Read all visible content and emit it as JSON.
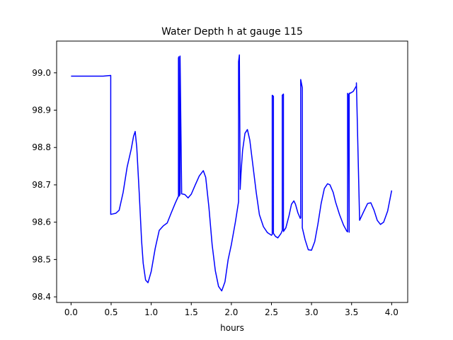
{
  "chart_data": {
    "type": "line",
    "title": "Water Depth h at gauge 115",
    "xlabel": "hours",
    "ylabel": "",
    "xlim": [
      -0.18,
      4.2
    ],
    "ylim": [
      98.385,
      99.085
    ],
    "xticks": [
      0.0,
      0.5,
      1.0,
      1.5,
      2.0,
      2.5,
      3.0,
      3.5,
      4.0
    ],
    "xtick_labels": [
      "0.0",
      "0.5",
      "1.0",
      "1.5",
      "2.0",
      "2.5",
      "3.0",
      "3.5",
      "4.0"
    ],
    "yticks": [
      98.4,
      98.5,
      98.6,
      98.7,
      98.8,
      98.9,
      99.0
    ],
    "ytick_labels": [
      "98.4",
      "98.5",
      "98.6",
      "98.7",
      "98.8",
      "98.9",
      "99.0"
    ],
    "grid": false,
    "color": "#0000ff",
    "series": [
      {
        "x": [
          0.0,
          0.2,
          0.4,
          0.495,
          0.495,
          0.52,
          0.56,
          0.6,
          0.65,
          0.7,
          0.75,
          0.78,
          0.8,
          0.82,
          0.85,
          0.88,
          0.9,
          0.93,
          0.96,
          1.0,
          1.05,
          1.1,
          1.15,
          1.2,
          1.25,
          1.3,
          1.34,
          1.34,
          1.345,
          1.35,
          1.36,
          1.36,
          1.38,
          1.42,
          1.46,
          1.5,
          1.55,
          1.6,
          1.65,
          1.68,
          1.72,
          1.76,
          1.8,
          1.84,
          1.88,
          1.92,
          1.96,
          2.0,
          2.05,
          2.09,
          2.09,
          2.1,
          2.11,
          2.11,
          2.12,
          2.14,
          2.17,
          2.2,
          2.23,
          2.27,
          2.31,
          2.35,
          2.4,
          2.45,
          2.5,
          2.51,
          2.51,
          2.525,
          2.525,
          2.55,
          2.58,
          2.62,
          2.635,
          2.635,
          2.65,
          2.65,
          2.68,
          2.72,
          2.75,
          2.78,
          2.8,
          2.83,
          2.86,
          2.865,
          2.865,
          2.885,
          2.885,
          2.92,
          2.96,
          3.0,
          3.04,
          3.08,
          3.12,
          3.16,
          3.2,
          3.23,
          3.27,
          3.3,
          3.35,
          3.4,
          3.44,
          3.45,
          3.45,
          3.46,
          3.47,
          3.47,
          3.48,
          3.48,
          3.52,
          3.56,
          3.56,
          3.6,
          3.65,
          3.7,
          3.74,
          3.78,
          3.82,
          3.86,
          3.9,
          3.95,
          4.0
        ],
        "y": [
          98.991,
          98.991,
          98.991,
          98.993,
          98.621,
          98.622,
          98.624,
          98.632,
          98.68,
          98.748,
          98.795,
          98.83,
          98.843,
          98.8,
          98.68,
          98.55,
          98.49,
          98.445,
          98.438,
          98.468,
          98.53,
          98.578,
          98.59,
          98.598,
          98.625,
          98.651,
          98.67,
          99.04,
          99.043,
          98.67,
          98.675,
          99.045,
          98.676,
          98.674,
          98.665,
          98.675,
          98.7,
          98.724,
          98.738,
          98.72,
          98.64,
          98.54,
          98.47,
          98.428,
          98.416,
          98.44,
          98.5,
          98.54,
          98.6,
          98.655,
          99.03,
          99.048,
          98.695,
          98.688,
          98.73,
          98.792,
          98.838,
          98.848,
          98.82,
          98.75,
          98.68,
          98.62,
          98.588,
          98.572,
          98.565,
          98.567,
          98.94,
          98.937,
          98.57,
          98.562,
          98.558,
          98.57,
          98.578,
          98.94,
          98.943,
          98.575,
          98.585,
          98.618,
          98.648,
          98.657,
          98.648,
          98.625,
          98.61,
          98.612,
          98.982,
          98.96,
          98.585,
          98.553,
          98.526,
          98.525,
          98.548,
          98.595,
          98.65,
          98.69,
          98.703,
          98.7,
          98.68,
          98.654,
          98.62,
          98.592,
          98.576,
          98.574,
          98.945,
          98.94,
          98.573,
          98.945,
          98.946,
          98.945,
          98.95,
          98.965,
          98.973,
          98.605,
          98.628,
          98.65,
          98.652,
          98.632,
          98.605,
          98.594,
          98.6,
          98.63,
          98.685
        ]
      }
    ]
  }
}
